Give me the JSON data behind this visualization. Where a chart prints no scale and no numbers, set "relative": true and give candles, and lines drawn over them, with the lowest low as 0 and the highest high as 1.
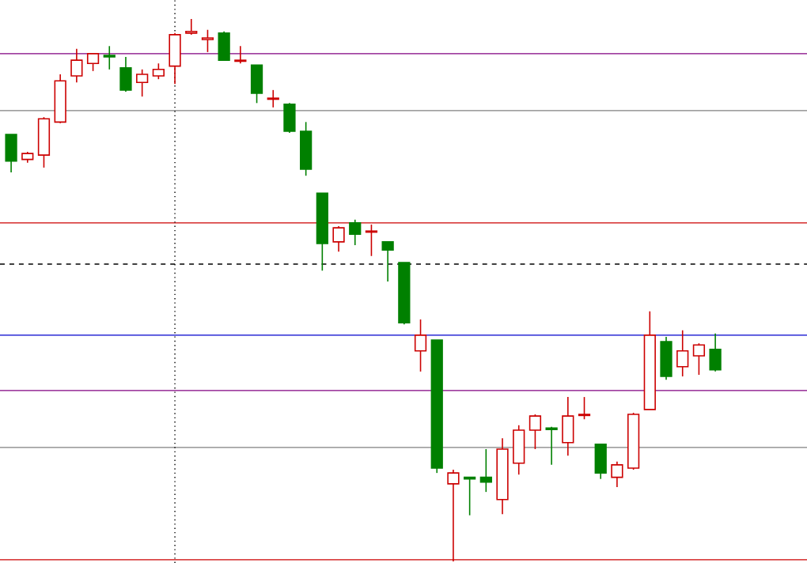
{
  "chart_data": {
    "type": "candlestick",
    "relative": true,
    "categories": [
      null,
      null,
      null,
      null,
      null,
      null,
      null,
      null,
      null,
      null,
      null,
      null,
      null,
      null,
      null,
      null,
      null,
      null,
      null,
      null,
      null,
      null,
      null,
      null,
      null,
      null,
      null,
      null,
      null,
      null,
      null,
      null,
      null,
      null,
      null,
      null,
      null,
      null,
      null,
      null,
      null,
      null,
      null,
      null
    ],
    "ohlc": [
      [
        0.787,
        0.787,
        0.717,
        0.738
      ],
      [
        0.741,
        0.755,
        0.735,
        0.752
      ],
      [
        0.749,
        0.819,
        0.726,
        0.816
      ],
      [
        0.81,
        0.898,
        0.808,
        0.886
      ],
      [
        0.895,
        0.945,
        0.883,
        0.924
      ],
      [
        0.918,
        0.936,
        0.904,
        0.936
      ],
      [
        0.933,
        0.95,
        0.907,
        0.93
      ],
      [
        0.91,
        0.93,
        0.866,
        0.869
      ],
      [
        0.883,
        0.907,
        0.857,
        0.898
      ],
      [
        0.895,
        0.918,
        0.889,
        0.907
      ],
      [
        0.913,
        0.974,
        0.88,
        0.971
      ],
      [
        0.974,
        1,
        0.971,
        0.977
      ],
      [
        0.962,
        0.98,
        0.939,
        0.965
      ],
      [
        0.974,
        0.977,
        0.924,
        0.924
      ],
      [
        0.922,
        0.95,
        0.918,
        0.924
      ],
      [
        0.915,
        0.915,
        0.845,
        0.863
      ],
      [
        0.852,
        0.869,
        0.837,
        0.854
      ],
      [
        0.843,
        0.845,
        0.79,
        0.793
      ],
      [
        0.793,
        0.81,
        0.711,
        0.723
      ],
      [
        0.679,
        0.679,
        0.536,
        0.586
      ],
      [
        0.589,
        0.618,
        0.571,
        0.615
      ],
      [
        0.624,
        0.63,
        0.583,
        0.603
      ],
      [
        0.607,
        0.621,
        0.563,
        0.609
      ],
      [
        0.589,
        0.589,
        0.516,
        0.574
      ],
      [
        0.551,
        0.551,
        0.437,
        0.44
      ],
      [
        0.388,
        0.446,
        0.35,
        0.417
      ],
      [
        0.408,
        0.408,
        0.163,
        0.172
      ],
      [
        0.143,
        0.169,
        0,
        0.163
      ],
      [
        0.155,
        0.155,
        0.085,
        0.152
      ],
      [
        0.155,
        0.207,
        0.128,
        0.146
      ],
      [
        0.114,
        0.227,
        0.087,
        0.207
      ],
      [
        0.181,
        0.251,
        0.16,
        0.242
      ],
      [
        0.242,
        0.271,
        0.207,
        0.268
      ],
      [
        0.246,
        0.248,
        0.178,
        0.243
      ],
      [
        0.219,
        0.303,
        0.195,
        0.268
      ],
      [
        0.269,
        0.303,
        0.262,
        0.271
      ],
      [
        0.216,
        0.216,
        0.152,
        0.163
      ],
      [
        0.155,
        0.184,
        0.137,
        0.178
      ],
      [
        0.172,
        0.274,
        0.169,
        0.271
      ],
      [
        0.28,
        0.461,
        0.28,
        0.417
      ],
      [
        0.405,
        0.414,
        0.335,
        0.341
      ],
      [
        0.359,
        0.426,
        0.341,
        0.388
      ],
      [
        0.379,
        0.402,
        0.344,
        0.399
      ],
      [
        0.391,
        0.42,
        0.35,
        0.353
      ]
    ],
    "colors": [
      "#008000",
      "#cc0000",
      "#cc0000",
      "#cc0000",
      "#cc0000",
      "#cc0000",
      "#008000",
      "#008000",
      "#cc0000",
      "#cc0000",
      "#cc0000",
      "#cc0000",
      "#cc0000",
      "#008000",
      "#cc0000",
      "#008000",
      "#cc0000",
      "#008000",
      "#008000",
      "#008000",
      "#cc0000",
      "#008000",
      "#cc0000",
      "#008000",
      "#008000",
      "#cc0000",
      "#008000",
      "#cc0000",
      "#008000",
      "#008000",
      "#cc0000",
      "#cc0000",
      "#cc0000",
      "#008000",
      "#cc0000",
      "#cc0000",
      "#008000",
      "#cc0000",
      "#cc0000",
      "#cc0000",
      "#008000",
      "#cc0000",
      "#cc0000",
      "#008000"
    ],
    "ref_lines": [
      {
        "axis": "y",
        "value": 0.936,
        "color": "#800080"
      },
      {
        "axis": "y",
        "value": 0.831,
        "color": "#808080"
      },
      {
        "axis": "y",
        "value": 0.624,
        "color": "#cc0000"
      },
      {
        "axis": "y",
        "value": 0.548,
        "color": "#000000",
        "line_style": "dashed"
      },
      {
        "axis": "y",
        "value": 0.417,
        "color": "#0000cc"
      },
      {
        "axis": "y",
        "value": 0.315,
        "color": "#800080"
      },
      {
        "axis": "y",
        "value": 0.21,
        "color": "#808080"
      },
      {
        "axis": "y",
        "value": 0.003,
        "color": "#cc0000"
      }
    ]
  }
}
